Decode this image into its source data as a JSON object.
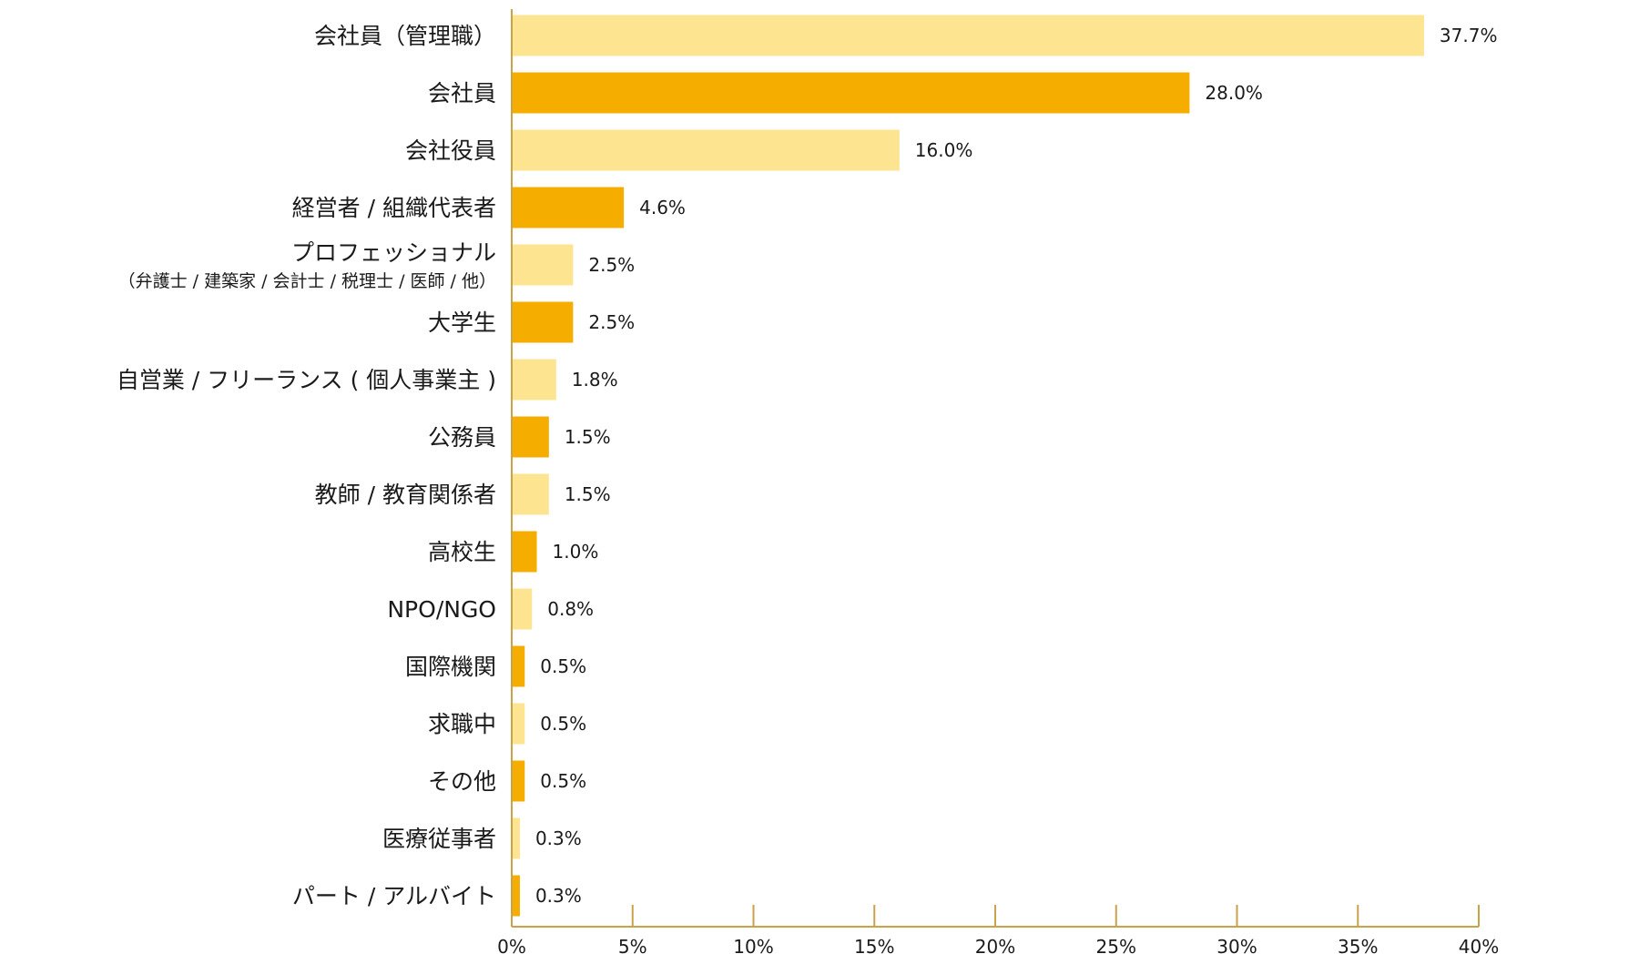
{
  "chart_data": {
    "type": "bar",
    "orientation": "horizontal",
    "categories": [
      "会社員（管理職）",
      "会社員",
      "会社役員",
      "経営者 / 組織代表者",
      "プロフェッショナル",
      "大学生",
      "自営業 / フリーランス ( 個人事業主 )",
      "公務員",
      "教師 / 教育関係者",
      "高校生",
      "NPO/NGO",
      "国際機関",
      "求職中",
      "その他",
      "医療従事者",
      "パート / アルバイト"
    ],
    "category_sublabels": {
      "4": "（弁護士 / 建築家 / 会計士 / 税理士 / 医師 / 他）"
    },
    "values": [
      37.7,
      28.0,
      16.0,
      4.6,
      2.5,
      2.5,
      1.8,
      1.5,
      1.5,
      1.0,
      0.8,
      0.5,
      0.5,
      0.5,
      0.3,
      0.3
    ],
    "value_labels": [
      "37.7%",
      "28.0%",
      "16.0%",
      "4.6%",
      "2.5%",
      "2.5%",
      "1.8%",
      "1.5%",
      "1.5%",
      "1.0%",
      "0.8%",
      "0.5%",
      "0.5%",
      "0.5%",
      "0.3%",
      "0.3%"
    ],
    "xlim": [
      0,
      40
    ],
    "x_ticks": [
      0,
      5,
      10,
      15,
      20,
      25,
      30,
      35,
      40
    ],
    "x_tick_labels": [
      "0%",
      "5%",
      "10%",
      "15%",
      "20%",
      "25%",
      "30%",
      "35%",
      "40%"
    ],
    "grid": false,
    "legend": "none",
    "colors": {
      "bar_light": "#fde490",
      "bar_dark": "#f5ad00",
      "axis": "#c9a24a",
      "text": "#1a1a1a"
    }
  }
}
